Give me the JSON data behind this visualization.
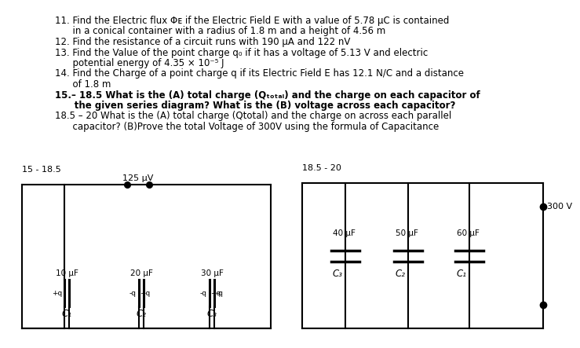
{
  "bg_color": "#ffffff",
  "text_color": "#000000",
  "text_lines": [
    {
      "text": "11. Find the Electric flux Φᴇ if the Electric Field E with a value of 5.78 μC is contained",
      "bold": false,
      "indent": false
    },
    {
      "text": "      in a conical container with a radius of 1.8 m and a height of 4.56 m",
      "bold": false,
      "indent": false
    },
    {
      "text": "12. Find the resistance of a circuit runs with 190 μA and 122 nV",
      "bold": false,
      "indent": false
    },
    {
      "text": "13. Find the Value of the point charge q₀ if it has a voltage of 5.13 V and electric",
      "bold": false,
      "indent": false
    },
    {
      "text": "      potential energy of 4.35 × 10⁻⁵ J",
      "bold": false,
      "indent": false
    },
    {
      "text": "14. Find the Charge of a point charge q if its Electric Field E has 12.1 N/C and a distance",
      "bold": false,
      "indent": false
    },
    {
      "text": "      of 1.8 m",
      "bold": false,
      "indent": false
    },
    {
      "text": "15.– 18.5 What is the (A) total charge (Qₜₒₜₐₗ) and the charge on each capacitor of",
      "bold": true,
      "indent": false
    },
    {
      "text": "      the given series diagram? What is the (B) voltage across each capacitor?",
      "bold": true,
      "indent": false
    },
    {
      "text": "18.5 – 20 What is the (A) total charge (Qtotal) and the charge on across each parallel",
      "bold": false,
      "indent": false
    },
    {
      "text": "      capacitor? (B)Prove the total Voltage of 300V using the formula of Capacitance",
      "bold": false,
      "indent": false
    }
  ],
  "d1_label": "15 - 18.5",
  "d1_voltage_label": "125 μV",
  "d1_caps": [
    "10 μF",
    "20 μF",
    "30 μF"
  ],
  "d1_cap_labels": [
    "C₁",
    "C₂",
    "C₃"
  ],
  "d2_label": "18.5 - 20",
  "d2_caps": [
    "40 μF",
    "50 μF",
    "60 μF"
  ],
  "d2_cap_labels": [
    "C₃",
    "C₂",
    "C₁"
  ],
  "d2_voltage_label": "300 V"
}
